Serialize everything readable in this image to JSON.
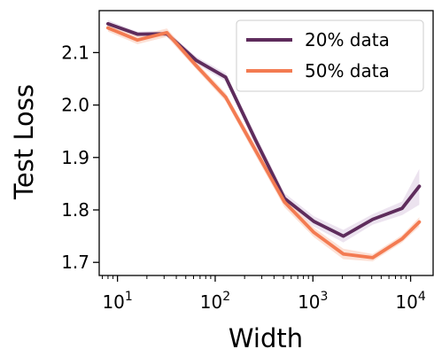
{
  "chart_data": {
    "type": "line",
    "xlabel": "Width",
    "ylabel": "Test Loss",
    "x_scale": "log",
    "xlim": [
      6.5,
      17000
    ],
    "ylim": [
      1.675,
      2.18
    ],
    "x_ticks": [
      {
        "value": 10,
        "base": "10",
        "exp": "1"
      },
      {
        "value": 100,
        "base": "10",
        "exp": "2"
      },
      {
        "value": 1000,
        "base": "10",
        "exp": "3"
      },
      {
        "value": 10000,
        "base": "10",
        "exp": "4"
      }
    ],
    "y_ticks": [
      "1.7",
      "1.8",
      "1.9",
      "2.0",
      "2.1"
    ],
    "grid": false,
    "legend_position": "top-right",
    "x": [
      8,
      16,
      32,
      64,
      128,
      256,
      512,
      1024,
      2048,
      4096,
      8192,
      12288
    ],
    "series": [
      {
        "name": "20% data",
        "color": "#5e2c5c",
        "band": "#e6d9ea",
        "values": [
          2.155,
          2.135,
          2.136,
          2.085,
          2.053,
          1.935,
          1.822,
          1.778,
          1.75,
          1.782,
          1.803,
          1.845
        ],
        "lower": [
          2.148,
          2.13,
          2.13,
          2.078,
          2.045,
          1.925,
          1.812,
          1.768,
          1.738,
          1.772,
          1.79,
          1.81
        ],
        "upper": [
          2.162,
          2.14,
          2.142,
          2.092,
          2.061,
          1.945,
          1.832,
          1.788,
          1.762,
          1.792,
          1.816,
          1.878
        ]
      },
      {
        "name": "50% data",
        "color": "#f37b52",
        "band": "#fbd7c8",
        "values": [
          2.147,
          2.124,
          2.138,
          2.075,
          2.015,
          1.915,
          1.815,
          1.757,
          1.716,
          1.709,
          1.745,
          1.777
        ],
        "lower": [
          2.14,
          2.116,
          2.13,
          2.068,
          2.007,
          1.905,
          1.805,
          1.748,
          1.706,
          1.702,
          1.738,
          1.768
        ],
        "upper": [
          2.154,
          2.132,
          2.146,
          2.082,
          2.023,
          1.925,
          1.825,
          1.766,
          1.726,
          1.716,
          1.752,
          1.786
        ]
      }
    ]
  }
}
